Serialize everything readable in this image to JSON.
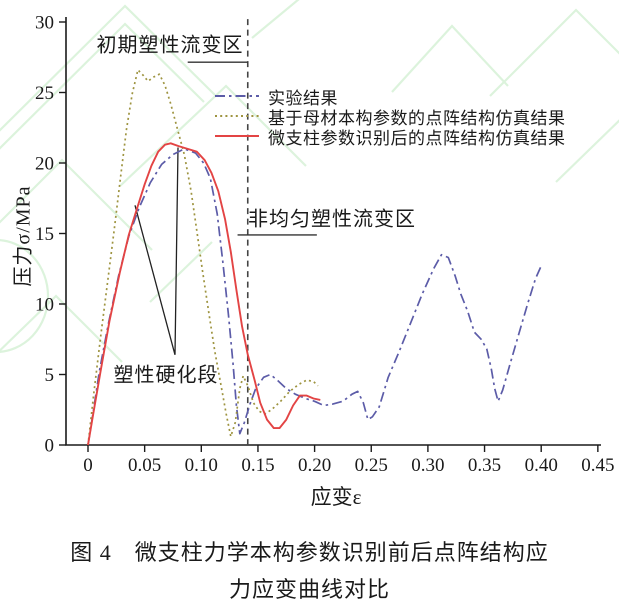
{
  "figure": {
    "caption_line1": "图 4　微支柱力学本构参数识别前后点阵结构应",
    "caption_line2": "力应变曲线对比"
  },
  "chart_data": {
    "type": "line",
    "title": "",
    "xlabel": "应变ε",
    "ylabel": "压力σ/MPa",
    "xlim": [
      0,
      0.45
    ],
    "ylim": [
      0,
      30
    ],
    "grid": false,
    "legend_position": "upper-right-inside",
    "x_ticks": {
      "values": [
        0,
        0.05,
        0.1,
        0.15,
        0.2,
        0.25,
        0.3,
        0.35,
        0.4,
        0.45
      ],
      "labels": [
        "0",
        "0.05",
        "0.10",
        "0.15",
        "0.20",
        "0.25",
        "0.30",
        "0.35",
        "0.40",
        "0.45"
      ]
    },
    "y_ticks": {
      "values": [
        0,
        5,
        10,
        15,
        20,
        25,
        30
      ],
      "labels": [
        "0",
        "5",
        "10",
        "15",
        "20",
        "25",
        "30"
      ]
    },
    "annotations": {
      "initial_zone_label": "初期塑性流变区",
      "nonuniform_zone_label": "非均匀塑性流变区",
      "hardening_label": "塑性硬化段",
      "boundary_line": {
        "x": 0.141,
        "y_bottom": 0,
        "y_top": 30.2,
        "style": "dashed",
        "color": "#444444"
      },
      "initial_zone_underline": {
        "x1": 0.088,
        "x2": 0.141,
        "y": 27.15
      },
      "nonuniform_zone_underline": {
        "x1": 0.132,
        "x2": 0.202,
        "y": 14.9
      },
      "hardening_leader_points": [
        [
          0.0415,
          17.0
        ],
        [
          0.0768,
          6.4
        ],
        [
          0.0794,
          21.1
        ]
      ]
    },
    "series": [
      {
        "name": "实验结果",
        "color": "#5c5ca8",
        "style": "dashdot",
        "points": [
          [
            0,
            0
          ],
          [
            0.004,
            2.0
          ],
          [
            0.01,
            5.2
          ],
          [
            0.018,
            8.6
          ],
          [
            0.027,
            12.0
          ],
          [
            0.036,
            14.8
          ],
          [
            0.045,
            16.8
          ],
          [
            0.055,
            18.6
          ],
          [
            0.065,
            19.9
          ],
          [
            0.075,
            20.6
          ],
          [
            0.085,
            21.0
          ],
          [
            0.095,
            20.7
          ],
          [
            0.102,
            20.0
          ],
          [
            0.108,
            18.9
          ],
          [
            0.114,
            16.4
          ],
          [
            0.119,
            13.0
          ],
          [
            0.124,
            9.2
          ],
          [
            0.128,
            5.8
          ],
          [
            0.131,
            2.8
          ],
          [
            0.134,
            0.8
          ],
          [
            0.138,
            1.6
          ],
          [
            0.143,
            2.9
          ],
          [
            0.148,
            4.0
          ],
          [
            0.155,
            4.8
          ],
          [
            0.161,
            5.0
          ],
          [
            0.167,
            4.6
          ],
          [
            0.175,
            4.0
          ],
          [
            0.183,
            3.6
          ],
          [
            0.192,
            3.3
          ],
          [
            0.2,
            3.1
          ],
          [
            0.208,
            2.8
          ],
          [
            0.216,
            2.9
          ],
          [
            0.225,
            3.1
          ],
          [
            0.233,
            3.6
          ],
          [
            0.238,
            3.8
          ],
          [
            0.243,
            3.0
          ],
          [
            0.247,
            1.8
          ],
          [
            0.251,
            2.0
          ],
          [
            0.257,
            2.7
          ],
          [
            0.265,
            4.8
          ],
          [
            0.275,
            6.7
          ],
          [
            0.285,
            8.7
          ],
          [
            0.295,
            10.7
          ],
          [
            0.305,
            12.5
          ],
          [
            0.312,
            13.5
          ],
          [
            0.318,
            13.3
          ],
          [
            0.324,
            12.0
          ],
          [
            0.329,
            10.7
          ],
          [
            0.335,
            9.5
          ],
          [
            0.341,
            8.0
          ],
          [
            0.347,
            7.5
          ],
          [
            0.352,
            6.8
          ],
          [
            0.356,
            5.4
          ],
          [
            0.359,
            4.0
          ],
          [
            0.362,
            3.1
          ],
          [
            0.366,
            3.9
          ],
          [
            0.372,
            5.6
          ],
          [
            0.38,
            7.8
          ],
          [
            0.388,
            10.0
          ],
          [
            0.395,
            11.8
          ],
          [
            0.4,
            12.7
          ]
        ]
      },
      {
        "name": "基于母材本构参数的点阵结构仿真结果",
        "color": "#9e9440",
        "style": "dotted",
        "points": [
          [
            0,
            0
          ],
          [
            0.005,
            3.6
          ],
          [
            0.011,
            7.6
          ],
          [
            0.017,
            11.4
          ],
          [
            0.023,
            15.2
          ],
          [
            0.029,
            19.2
          ],
          [
            0.034,
            22.4
          ],
          [
            0.039,
            24.9
          ],
          [
            0.044,
            26.6
          ],
          [
            0.049,
            26.2
          ],
          [
            0.053,
            25.8
          ],
          [
            0.058,
            26.1
          ],
          [
            0.063,
            26.3
          ],
          [
            0.068,
            25.5
          ],
          [
            0.073,
            24.2
          ],
          [
            0.079,
            22.4
          ],
          [
            0.085,
            20.6
          ],
          [
            0.091,
            18.0
          ],
          [
            0.096,
            15.2
          ],
          [
            0.101,
            12.4
          ],
          [
            0.107,
            9.2
          ],
          [
            0.112,
            6.6
          ],
          [
            0.117,
            4.4
          ],
          [
            0.122,
            2.2
          ],
          [
            0.126,
            0.6
          ],
          [
            0.13,
            1.6
          ],
          [
            0.134,
            4.0
          ],
          [
            0.137,
            4.9
          ],
          [
            0.141,
            4.2
          ],
          [
            0.146,
            3.0
          ],
          [
            0.151,
            2.4
          ],
          [
            0.156,
            2.2
          ],
          [
            0.162,
            2.5
          ],
          [
            0.17,
            3.1
          ],
          [
            0.178,
            3.8
          ],
          [
            0.186,
            4.3
          ],
          [
            0.193,
            4.6
          ],
          [
            0.199,
            4.5
          ],
          [
            0.203,
            4.2
          ]
        ]
      },
      {
        "name": "微支柱参数识别后的点阵结构仿真结果",
        "color": "#e34444",
        "style": "solid",
        "points": [
          [
            0,
            0
          ],
          [
            0.004,
            1.9
          ],
          [
            0.011,
            5.2
          ],
          [
            0.019,
            8.8
          ],
          [
            0.028,
            12.2
          ],
          [
            0.036,
            14.9
          ],
          [
            0.043,
            16.7
          ],
          [
            0.05,
            18.5
          ],
          [
            0.056,
            19.8
          ],
          [
            0.062,
            20.8
          ],
          [
            0.068,
            21.3
          ],
          [
            0.073,
            21.4
          ],
          [
            0.08,
            21.2
          ],
          [
            0.088,
            21.0
          ],
          [
            0.096,
            20.8
          ],
          [
            0.103,
            20.2
          ],
          [
            0.109,
            19.3
          ],
          [
            0.115,
            18.0
          ],
          [
            0.121,
            16.0
          ],
          [
            0.126,
            13.7
          ],
          [
            0.131,
            11.0
          ],
          [
            0.136,
            8.4
          ],
          [
            0.141,
            6.4
          ],
          [
            0.147,
            4.6
          ],
          [
            0.152,
            3.0
          ],
          [
            0.158,
            1.8
          ],
          [
            0.164,
            1.2
          ],
          [
            0.169,
            1.2
          ],
          [
            0.175,
            1.8
          ],
          [
            0.181,
            2.8
          ],
          [
            0.187,
            3.5
          ],
          [
            0.193,
            3.5
          ],
          [
            0.199,
            3.3
          ],
          [
            0.205,
            3.2
          ]
        ]
      }
    ]
  }
}
